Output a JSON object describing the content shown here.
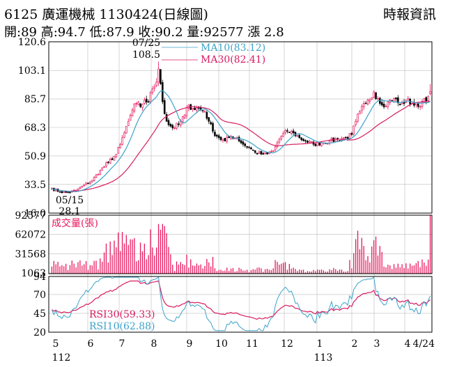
{
  "header": {
    "title": "6125 廣運機械 1130424(日線圖)",
    "source": "時報資訊",
    "stats": "開:89 高:94.7 低:87.9 收:90.2 量:92577 漲 2.8"
  },
  "colors": {
    "up": "#e8175d",
    "down": "#000000",
    "ma10": "#3ba3c9",
    "ma30": "#d81b60",
    "volume": "#e8175d",
    "rsi30": "#d81b60",
    "rsi10": "#3ba3c9",
    "grid": "#bbbbbb"
  },
  "chart_data": [
    {
      "type": "candlestick",
      "name": "price",
      "ylim": [
        16.0,
        120.6
      ],
      "yticks": [
        "120.6",
        "103.1",
        "85.7",
        "68.3",
        "50.9",
        "33.5",
        "16.0"
      ],
      "grid": true,
      "months": [
        "5",
        "6",
        "7",
        "8",
        "9",
        "10",
        "11",
        "12",
        "1",
        "2",
        "3",
        "4",
        "4/24"
      ],
      "years": [
        "112",
        "113"
      ],
      "anchors": [
        {
          "x": 0,
          "close": 31.0
        },
        {
          "x": 4,
          "close": 29.0
        },
        {
          "x": 8,
          "close": 28.5
        },
        {
          "x": 12,
          "close": 30.0
        },
        {
          "x": 16,
          "close": 33.0
        },
        {
          "x": 20,
          "close": 36.0
        },
        {
          "x": 24,
          "close": 42.0
        },
        {
          "x": 28,
          "close": 47.0
        },
        {
          "x": 32,
          "close": 52.0
        },
        {
          "x": 34,
          "close": 58.0
        },
        {
          "x": 36,
          "close": 65.0
        },
        {
          "x": 38,
          "close": 72.0
        },
        {
          "x": 40,
          "close": 79.0
        },
        {
          "x": 42,
          "close": 83.0
        },
        {
          "x": 44,
          "close": 81.0
        },
        {
          "x": 46,
          "close": 85.0
        },
        {
          "x": 48,
          "close": 84.0
        },
        {
          "x": 50,
          "close": 92.0
        },
        {
          "x": 52,
          "close": 96.0
        },
        {
          "x": 53,
          "close": 104.0
        },
        {
          "x": 54,
          "close": 95.0
        },
        {
          "x": 55,
          "close": 84.0
        },
        {
          "x": 57,
          "close": 72.0
        },
        {
          "x": 60,
          "close": 68.0
        },
        {
          "x": 63,
          "close": 70.0
        },
        {
          "x": 66,
          "close": 76.0
        },
        {
          "x": 68,
          "close": 82.0
        },
        {
          "x": 70,
          "close": 80.0
        },
        {
          "x": 73,
          "close": 80.0
        },
        {
          "x": 76,
          "close": 78.0
        },
        {
          "x": 78,
          "close": 72.0
        },
        {
          "x": 80,
          "close": 66.0
        },
        {
          "x": 83,
          "close": 62.0
        },
        {
          "x": 86,
          "close": 60.0
        },
        {
          "x": 89,
          "close": 63.0
        },
        {
          "x": 92,
          "close": 62.0
        },
        {
          "x": 95,
          "close": 58.0
        },
        {
          "x": 98,
          "close": 56.0
        },
        {
          "x": 101,
          "close": 53.0
        },
        {
          "x": 104,
          "close": 52.0
        },
        {
          "x": 107,
          "close": 52.0
        },
        {
          "x": 110,
          "close": 54.0
        },
        {
          "x": 112,
          "close": 59.0
        },
        {
          "x": 114,
          "close": 63.0
        },
        {
          "x": 117,
          "close": 66.0
        },
        {
          "x": 120,
          "close": 65.0
        },
        {
          "x": 123,
          "close": 62.0
        },
        {
          "x": 126,
          "close": 60.0
        },
        {
          "x": 130,
          "close": 58.0
        },
        {
          "x": 134,
          "close": 59.0
        },
        {
          "x": 138,
          "close": 60.0
        },
        {
          "x": 142,
          "close": 61.0
        },
        {
          "x": 146,
          "close": 62.0
        },
        {
          "x": 149,
          "close": 64.0
        },
        {
          "x": 151,
          "close": 72.0
        },
        {
          "x": 153,
          "close": 78.0
        },
        {
          "x": 156,
          "close": 83.0
        },
        {
          "x": 158,
          "close": 85.0
        },
        {
          "x": 160,
          "close": 90.0
        },
        {
          "x": 162,
          "close": 86.0
        },
        {
          "x": 164,
          "close": 82.0
        },
        {
          "x": 167,
          "close": 84.0
        },
        {
          "x": 170,
          "close": 86.0
        },
        {
          "x": 173,
          "close": 82.0
        },
        {
          "x": 176,
          "close": 85.0
        },
        {
          "x": 179,
          "close": 83.0
        },
        {
          "x": 182,
          "close": 81.0
        },
        {
          "x": 185,
          "close": 86.0
        },
        {
          "x": 187,
          "close": 87.4
        },
        {
          "x": 188,
          "close": 90.2
        }
      ],
      "annotations": [
        {
          "date": "07/25",
          "value": "108.5"
        },
        {
          "date": "05/15",
          "value": "28.1"
        }
      ],
      "series": [
        {
          "name": "MA10",
          "value": "83.12",
          "label": "MA10(83.12)"
        },
        {
          "name": "MA30",
          "value": "82.41",
          "label": "MA30(82.41)"
        }
      ],
      "last_bar": {
        "open": 89,
        "high": 94.7,
        "low": 87.9,
        "close": 90.2
      }
    },
    {
      "type": "bar",
      "name": "volume",
      "title": "成交量(張)",
      "ylim": [
        0,
        92577
      ],
      "yticks": [
        "92577",
        "62072",
        "31568",
        "1063"
      ],
      "last_value": 92577
    },
    {
      "type": "line",
      "name": "rsi",
      "ylim": [
        20,
        94
      ],
      "yticks": [
        "94",
        "70",
        "45",
        "20"
      ],
      "series": [
        {
          "name": "RSI30",
          "value": "59.33",
          "label": "RSI30(59.33)"
        },
        {
          "name": "RSI10",
          "value": "62.88",
          "label": "RSI10(62.88)"
        }
      ]
    }
  ]
}
